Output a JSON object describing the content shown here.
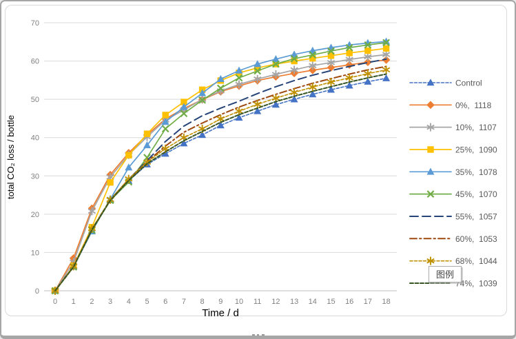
{
  "tooltip": {
    "label": "图例"
  },
  "colors": {
    "grid": "#D9D9D9",
    "axis_line": "#BFBFBF",
    "tick_label": "#808080",
    "axis_title": "#6E6E6E",
    "legend_text": "#595959"
  },
  "chart_data": {
    "type": "line",
    "title": "",
    "xlabel": "Time / d",
    "ylabel": "total CO₂ loss / bottle",
    "xlim": [
      0,
      18
    ],
    "ylim": [
      0,
      70
    ],
    "x_ticks": [
      0,
      1,
      2,
      3,
      4,
      5,
      6,
      7,
      8,
      9,
      10,
      11,
      12,
      13,
      14,
      15,
      16,
      17,
      18
    ],
    "y_ticks": [
      0,
      10,
      20,
      30,
      40,
      50,
      60,
      70
    ],
    "grid": "horizontal",
    "legend_position": "right",
    "x": [
      0,
      1,
      2,
      3,
      4,
      5,
      6,
      7,
      8,
      9,
      10,
      11,
      12,
      13,
      14,
      15,
      16,
      17,
      18
    ],
    "series": [
      {
        "name": "Control",
        "color": "#4472C4",
        "line_style": "dashed",
        "marker": "triangle",
        "width": 1.6,
        "values": [
          0,
          6.5,
          15.8,
          23.7,
          28.7,
          33,
          35.8,
          38.5,
          40.7,
          43.2,
          45.2,
          46.9,
          48.6,
          50,
          51.3,
          52.5,
          53.6,
          54.6,
          55.5
        ]
      },
      {
        "name": "0%,  1118",
        "color": "#ED7D31",
        "line_style": "solid",
        "marker": "diamond",
        "width": 1.7,
        "values": [
          0,
          8.5,
          21.5,
          30.3,
          36,
          40.7,
          44.9,
          47.6,
          49.9,
          52,
          53.5,
          54.9,
          55.9,
          56.8,
          57.6,
          58.3,
          59,
          59.7,
          60.3
        ]
      },
      {
        "name": "10%,  1107",
        "color": "#A5A5A5",
        "line_style": "solid",
        "marker": "asterisk",
        "width": 1.7,
        "values": [
          0,
          7.5,
          20.8,
          29.7,
          35.5,
          40.2,
          44.6,
          47.2,
          50,
          52.2,
          53.9,
          55.3,
          56.5,
          57.7,
          58.8,
          59.6,
          60.4,
          61.1,
          61.7
        ]
      },
      {
        "name": "25%,  1090",
        "color": "#FFC000",
        "line_style": "solid",
        "marker": "square",
        "width": 1.7,
        "values": [
          0,
          6.5,
          16.6,
          28.3,
          35.4,
          41,
          45.9,
          49.3,
          52.5,
          54.9,
          56.9,
          58.2,
          59.2,
          60,
          60.7,
          61.4,
          62.1,
          62.7,
          63.3
        ]
      },
      {
        "name": "35%,  1078",
        "color": "#5B9BD5",
        "line_style": "solid",
        "marker": "triangle",
        "width": 1.7,
        "values": [
          0,
          6.3,
          15.5,
          23.9,
          32.2,
          38,
          44.1,
          48,
          51.6,
          55.3,
          57.5,
          59.2,
          60.5,
          61.7,
          62.7,
          63.5,
          64.2,
          64.7,
          65.1
        ]
      },
      {
        "name": "45%,  1070",
        "color": "#70AD47",
        "line_style": "solid",
        "marker": "x",
        "width": 1.7,
        "values": [
          0,
          6.2,
          15.8,
          23.6,
          28.4,
          34.8,
          42.3,
          46.3,
          49.8,
          52.9,
          55.6,
          57.4,
          59.2,
          60.6,
          61.6,
          62.6,
          63.5,
          64.2,
          64.8
        ]
      },
      {
        "name": "55%,  1057",
        "color": "#264478",
        "line_style": "long-dash",
        "marker": "none",
        "width": 2,
        "values": [
          0,
          6.4,
          16,
          23.8,
          29.1,
          34,
          39,
          43,
          45.7,
          47.7,
          49.5,
          51.5,
          53.3,
          54.9,
          56.3,
          57.5,
          58.6,
          59.6,
          60.5
        ]
      },
      {
        "name": "60%,  1053",
        "color": "#9E480E",
        "line_style": "dash-dot",
        "marker": "none",
        "width": 2,
        "values": [
          0,
          6.3,
          16,
          23.7,
          29,
          33.7,
          37.8,
          41.4,
          43.8,
          46,
          48,
          49.7,
          51.3,
          52.8,
          54.2,
          55.4,
          56.6,
          57.7,
          58.6
        ]
      },
      {
        "name": "68%,  1044",
        "color": "#BF9000",
        "line_style": "dashed",
        "marker": "asterisk",
        "width": 1.6,
        "values": [
          0,
          6.4,
          16.2,
          23.8,
          29.2,
          33.6,
          37.1,
          40,
          42.3,
          44.9,
          46.9,
          48.7,
          50.3,
          51.8,
          53.2,
          54.5,
          55.6,
          56.7,
          57.7
        ]
      },
      {
        "name": "74%,  1039",
        "color": "#375623",
        "line_style": "dashed-wide",
        "marker": "none",
        "width": 2,
        "values": [
          0,
          6.2,
          15.9,
          23.6,
          28.8,
          33.2,
          36.3,
          39.2,
          41.6,
          44,
          46,
          47.7,
          49.4,
          50.8,
          52.1,
          53.3,
          54.5,
          55.6,
          56.6
        ]
      }
    ]
  }
}
